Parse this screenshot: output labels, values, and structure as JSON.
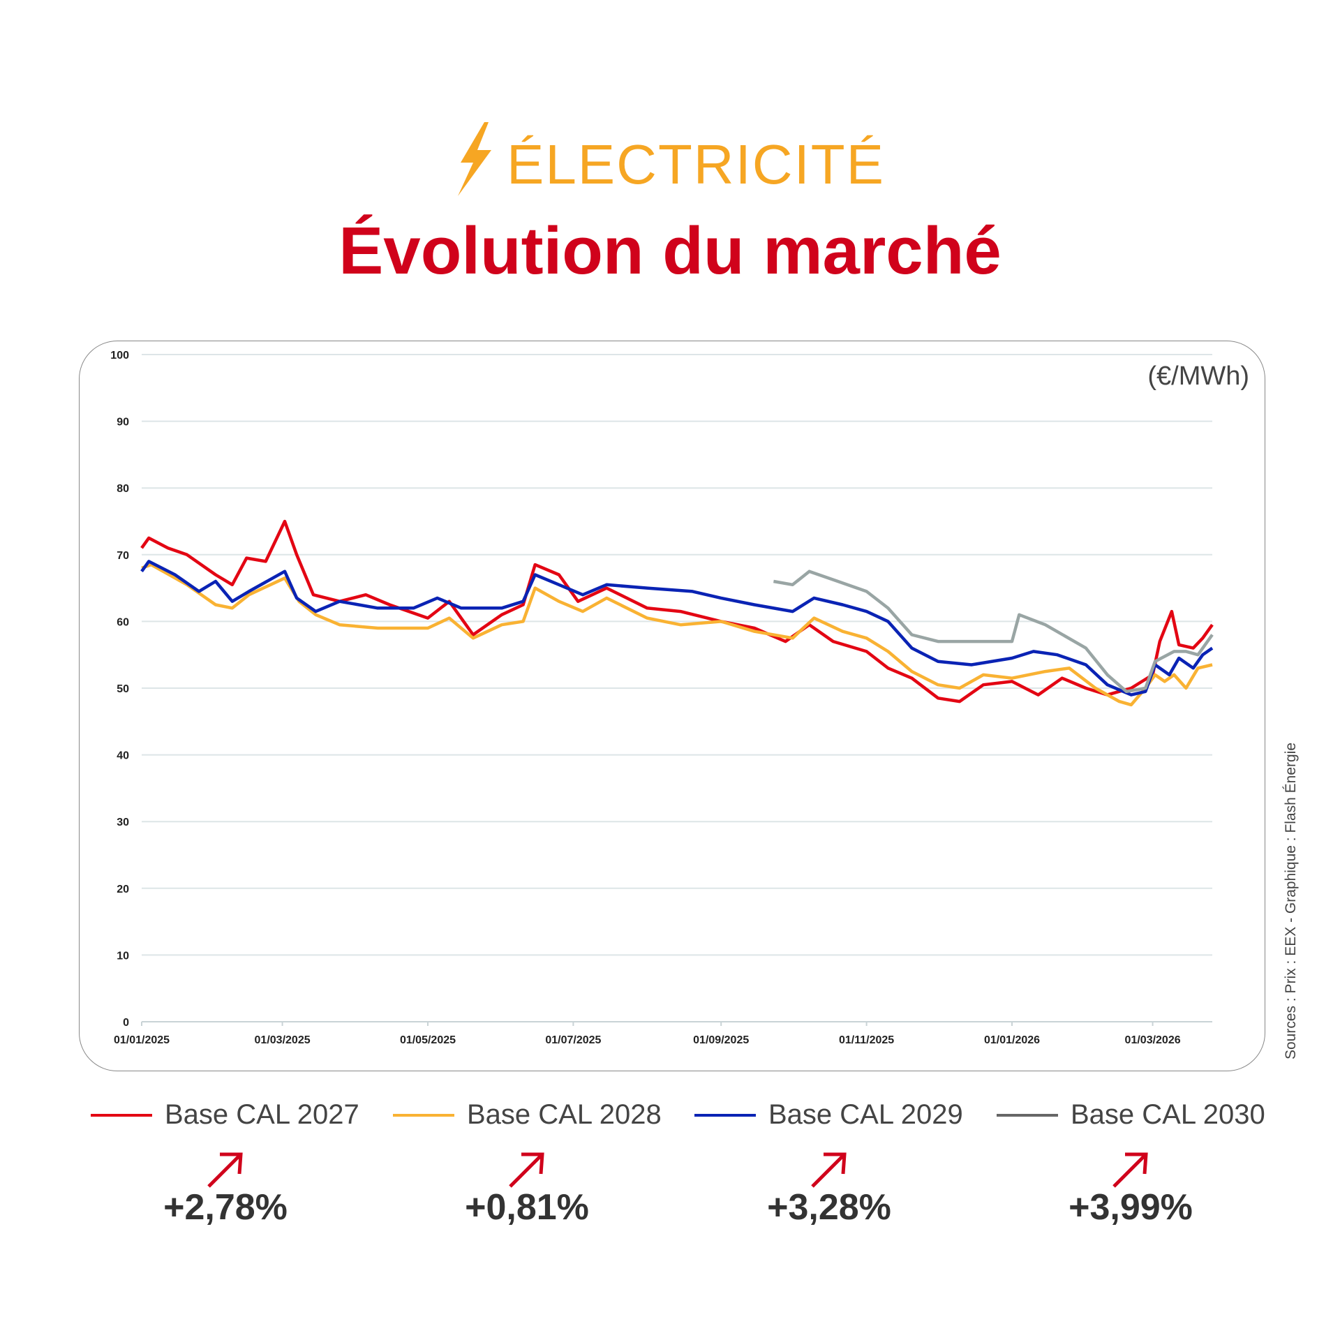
{
  "header": {
    "category": "ÉLECTRICITÉ",
    "title": "Évolution du marché",
    "icon": "lightning-icon",
    "category_color": "#f6a623",
    "title_color": "#d0021b"
  },
  "chart_data": {
    "type": "line",
    "unit_label": "(€/MWh)",
    "ylim": [
      0,
      100
    ],
    "yticks": [
      0,
      10,
      20,
      30,
      40,
      50,
      60,
      70,
      80,
      90,
      100
    ],
    "xlim": [
      "2025-01-01",
      "2026-03-26"
    ],
    "xticks": [
      "01/01/2025",
      "01/03/2025",
      "01/05/2025",
      "01/07/2025",
      "01/09/2025",
      "01/11/2025",
      "01/01/2026",
      "01/03/2026"
    ],
    "grid": true,
    "legend_position": "bottom",
    "series": [
      {
        "name": "Base CAL 2027",
        "color": "#e30613",
        "points": [
          [
            "2025-01-01",
            71
          ],
          [
            "2025-01-04",
            72.5
          ],
          [
            "2025-01-12",
            71
          ],
          [
            "2025-01-20",
            70
          ],
          [
            "2025-02-01",
            67
          ],
          [
            "2025-02-08",
            65.5
          ],
          [
            "2025-02-14",
            69.5
          ],
          [
            "2025-02-22",
            69
          ],
          [
            "2025-03-02",
            75
          ],
          [
            "2025-03-07",
            70
          ],
          [
            "2025-03-14",
            64
          ],
          [
            "2025-03-25",
            63
          ],
          [
            "2025-04-05",
            64
          ],
          [
            "2025-04-15",
            62.5
          ],
          [
            "2025-05-01",
            60.5
          ],
          [
            "2025-05-10",
            63
          ],
          [
            "2025-05-20",
            58
          ],
          [
            "2025-06-01",
            61
          ],
          [
            "2025-06-10",
            62.5
          ],
          [
            "2025-06-15",
            68.5
          ],
          [
            "2025-06-25",
            67
          ],
          [
            "2025-07-03",
            63
          ],
          [
            "2025-07-15",
            65
          ],
          [
            "2025-08-01",
            62
          ],
          [
            "2025-08-15",
            61.5
          ],
          [
            "2025-09-01",
            60
          ],
          [
            "2025-09-15",
            59
          ],
          [
            "2025-09-28",
            57
          ],
          [
            "2025-10-08",
            59.5
          ],
          [
            "2025-10-18",
            57
          ],
          [
            "2025-11-01",
            55.5
          ],
          [
            "2025-11-10",
            53
          ],
          [
            "2025-11-20",
            51.5
          ],
          [
            "2025-12-01",
            48.5
          ],
          [
            "2025-12-10",
            48
          ],
          [
            "2025-12-20",
            50.5
          ],
          [
            "2026-01-01",
            51
          ],
          [
            "2026-01-12",
            49
          ],
          [
            "2026-01-22",
            51.5
          ],
          [
            "2026-02-01",
            50
          ],
          [
            "2026-02-10",
            49
          ],
          [
            "2026-02-20",
            50
          ],
          [
            "2026-03-01",
            52
          ],
          [
            "2026-03-04",
            57
          ],
          [
            "2026-03-09",
            61.5
          ],
          [
            "2026-03-12",
            56.5
          ],
          [
            "2026-03-18",
            56
          ],
          [
            "2026-03-22",
            57.5
          ],
          [
            "2026-03-26",
            59.5
          ]
        ]
      },
      {
        "name": "Base CAL 2028",
        "color": "#f9b233",
        "points": [
          [
            "2025-01-01",
            68
          ],
          [
            "2025-01-05",
            68.5
          ],
          [
            "2025-01-20",
            65.5
          ],
          [
            "2025-02-01",
            62.5
          ],
          [
            "2025-02-08",
            62
          ],
          [
            "2025-02-15",
            64
          ],
          [
            "2025-03-02",
            66.5
          ],
          [
            "2025-03-08",
            63
          ],
          [
            "2025-03-15",
            61
          ],
          [
            "2025-03-25",
            59.5
          ],
          [
            "2025-04-10",
            59
          ],
          [
            "2025-05-01",
            59
          ],
          [
            "2025-05-10",
            60.5
          ],
          [
            "2025-05-20",
            57.5
          ],
          [
            "2025-06-01",
            59.5
          ],
          [
            "2025-06-10",
            60
          ],
          [
            "2025-06-15",
            65
          ],
          [
            "2025-06-25",
            63
          ],
          [
            "2025-07-05",
            61.5
          ],
          [
            "2025-07-15",
            63.5
          ],
          [
            "2025-08-01",
            60.5
          ],
          [
            "2025-08-15",
            59.5
          ],
          [
            "2025-09-01",
            60
          ],
          [
            "2025-09-15",
            58.5
          ],
          [
            "2025-10-01",
            57.5
          ],
          [
            "2025-10-10",
            60.5
          ],
          [
            "2025-10-22",
            58.5
          ],
          [
            "2025-11-01",
            57.5
          ],
          [
            "2025-11-10",
            55.5
          ],
          [
            "2025-11-20",
            52.5
          ],
          [
            "2025-12-01",
            50.5
          ],
          [
            "2025-12-10",
            50
          ],
          [
            "2025-12-20",
            52
          ],
          [
            "2026-01-01",
            51.5
          ],
          [
            "2026-01-15",
            52.5
          ],
          [
            "2026-01-25",
            53
          ],
          [
            "2026-02-05",
            50
          ],
          [
            "2026-02-15",
            48
          ],
          [
            "2026-02-20",
            47.5
          ],
          [
            "2026-02-26",
            50
          ],
          [
            "2026-03-02",
            52
          ],
          [
            "2026-03-06",
            51
          ],
          [
            "2026-03-10",
            52
          ],
          [
            "2026-03-15",
            50
          ],
          [
            "2026-03-20",
            53
          ],
          [
            "2026-03-26",
            53.5
          ]
        ]
      },
      {
        "name": "Base CAL 2029",
        "color": "#0a23b4",
        "points": [
          [
            "2025-01-01",
            67.5
          ],
          [
            "2025-01-04",
            69
          ],
          [
            "2025-01-15",
            67
          ],
          [
            "2025-01-25",
            64.5
          ],
          [
            "2025-02-01",
            66
          ],
          [
            "2025-02-08",
            63
          ],
          [
            "2025-02-15",
            64.5
          ],
          [
            "2025-03-02",
            67.5
          ],
          [
            "2025-03-07",
            63.5
          ],
          [
            "2025-03-15",
            61.5
          ],
          [
            "2025-03-25",
            63
          ],
          [
            "2025-04-10",
            62
          ],
          [
            "2025-04-25",
            62
          ],
          [
            "2025-05-05",
            63.5
          ],
          [
            "2025-05-15",
            62
          ],
          [
            "2025-06-01",
            62
          ],
          [
            "2025-06-10",
            63
          ],
          [
            "2025-06-15",
            67
          ],
          [
            "2025-06-25",
            65.5
          ],
          [
            "2025-07-05",
            64
          ],
          [
            "2025-07-15",
            65.5
          ],
          [
            "2025-08-01",
            65
          ],
          [
            "2025-08-20",
            64.5
          ],
          [
            "2025-09-01",
            63.5
          ],
          [
            "2025-09-15",
            62.5
          ],
          [
            "2025-10-01",
            61.5
          ],
          [
            "2025-10-10",
            63.5
          ],
          [
            "2025-10-22",
            62.5
          ],
          [
            "2025-11-01",
            61.5
          ],
          [
            "2025-11-10",
            60
          ],
          [
            "2025-11-20",
            56
          ],
          [
            "2025-12-01",
            54
          ],
          [
            "2025-12-15",
            53.5
          ],
          [
            "2026-01-01",
            54.5
          ],
          [
            "2026-01-10",
            55.5
          ],
          [
            "2026-01-20",
            55
          ],
          [
            "2026-02-01",
            53.5
          ],
          [
            "2026-02-10",
            50.5
          ],
          [
            "2026-02-20",
            49
          ],
          [
            "2026-02-26",
            49.5
          ],
          [
            "2026-03-02",
            53.5
          ],
          [
            "2026-03-08",
            52
          ],
          [
            "2026-03-12",
            54.5
          ],
          [
            "2026-03-18",
            53
          ],
          [
            "2026-03-22",
            55
          ],
          [
            "2026-03-26",
            56
          ]
        ]
      },
      {
        "name": "Base CAL 2030",
        "color": "#99a5a4",
        "points": [
          [
            "2025-09-23",
            66
          ],
          [
            "2025-10-01",
            65.5
          ],
          [
            "2025-10-08",
            67.5
          ],
          [
            "2025-10-20",
            66
          ],
          [
            "2025-11-01",
            64.5
          ],
          [
            "2025-11-10",
            62
          ],
          [
            "2025-11-20",
            58
          ],
          [
            "2025-12-01",
            57
          ],
          [
            "2025-12-15",
            57
          ],
          [
            "2026-01-01",
            57
          ],
          [
            "2026-01-04",
            61
          ],
          [
            "2026-01-15",
            59.5
          ],
          [
            "2026-02-01",
            56
          ],
          [
            "2026-02-10",
            52
          ],
          [
            "2026-02-18",
            49.5
          ],
          [
            "2026-02-26",
            50
          ],
          [
            "2026-03-02",
            54
          ],
          [
            "2026-03-10",
            55.5
          ],
          [
            "2026-03-15",
            55.5
          ],
          [
            "2026-03-20",
            55
          ],
          [
            "2026-03-26",
            58
          ]
        ]
      }
    ]
  },
  "sources": "Sources : Prix : EEX - Graphique : Flash Énergie",
  "changes": [
    {
      "series": "Base CAL 2027",
      "value": "+2,78%",
      "direction": "up"
    },
    {
      "series": "Base CAL 2028",
      "value": "+0,81%",
      "direction": "up"
    },
    {
      "series": "Base CAL 2029",
      "value": "+3,28%",
      "direction": "up"
    },
    {
      "series": "Base CAL 2030",
      "value": "+3,99%",
      "direction": "up"
    }
  ]
}
